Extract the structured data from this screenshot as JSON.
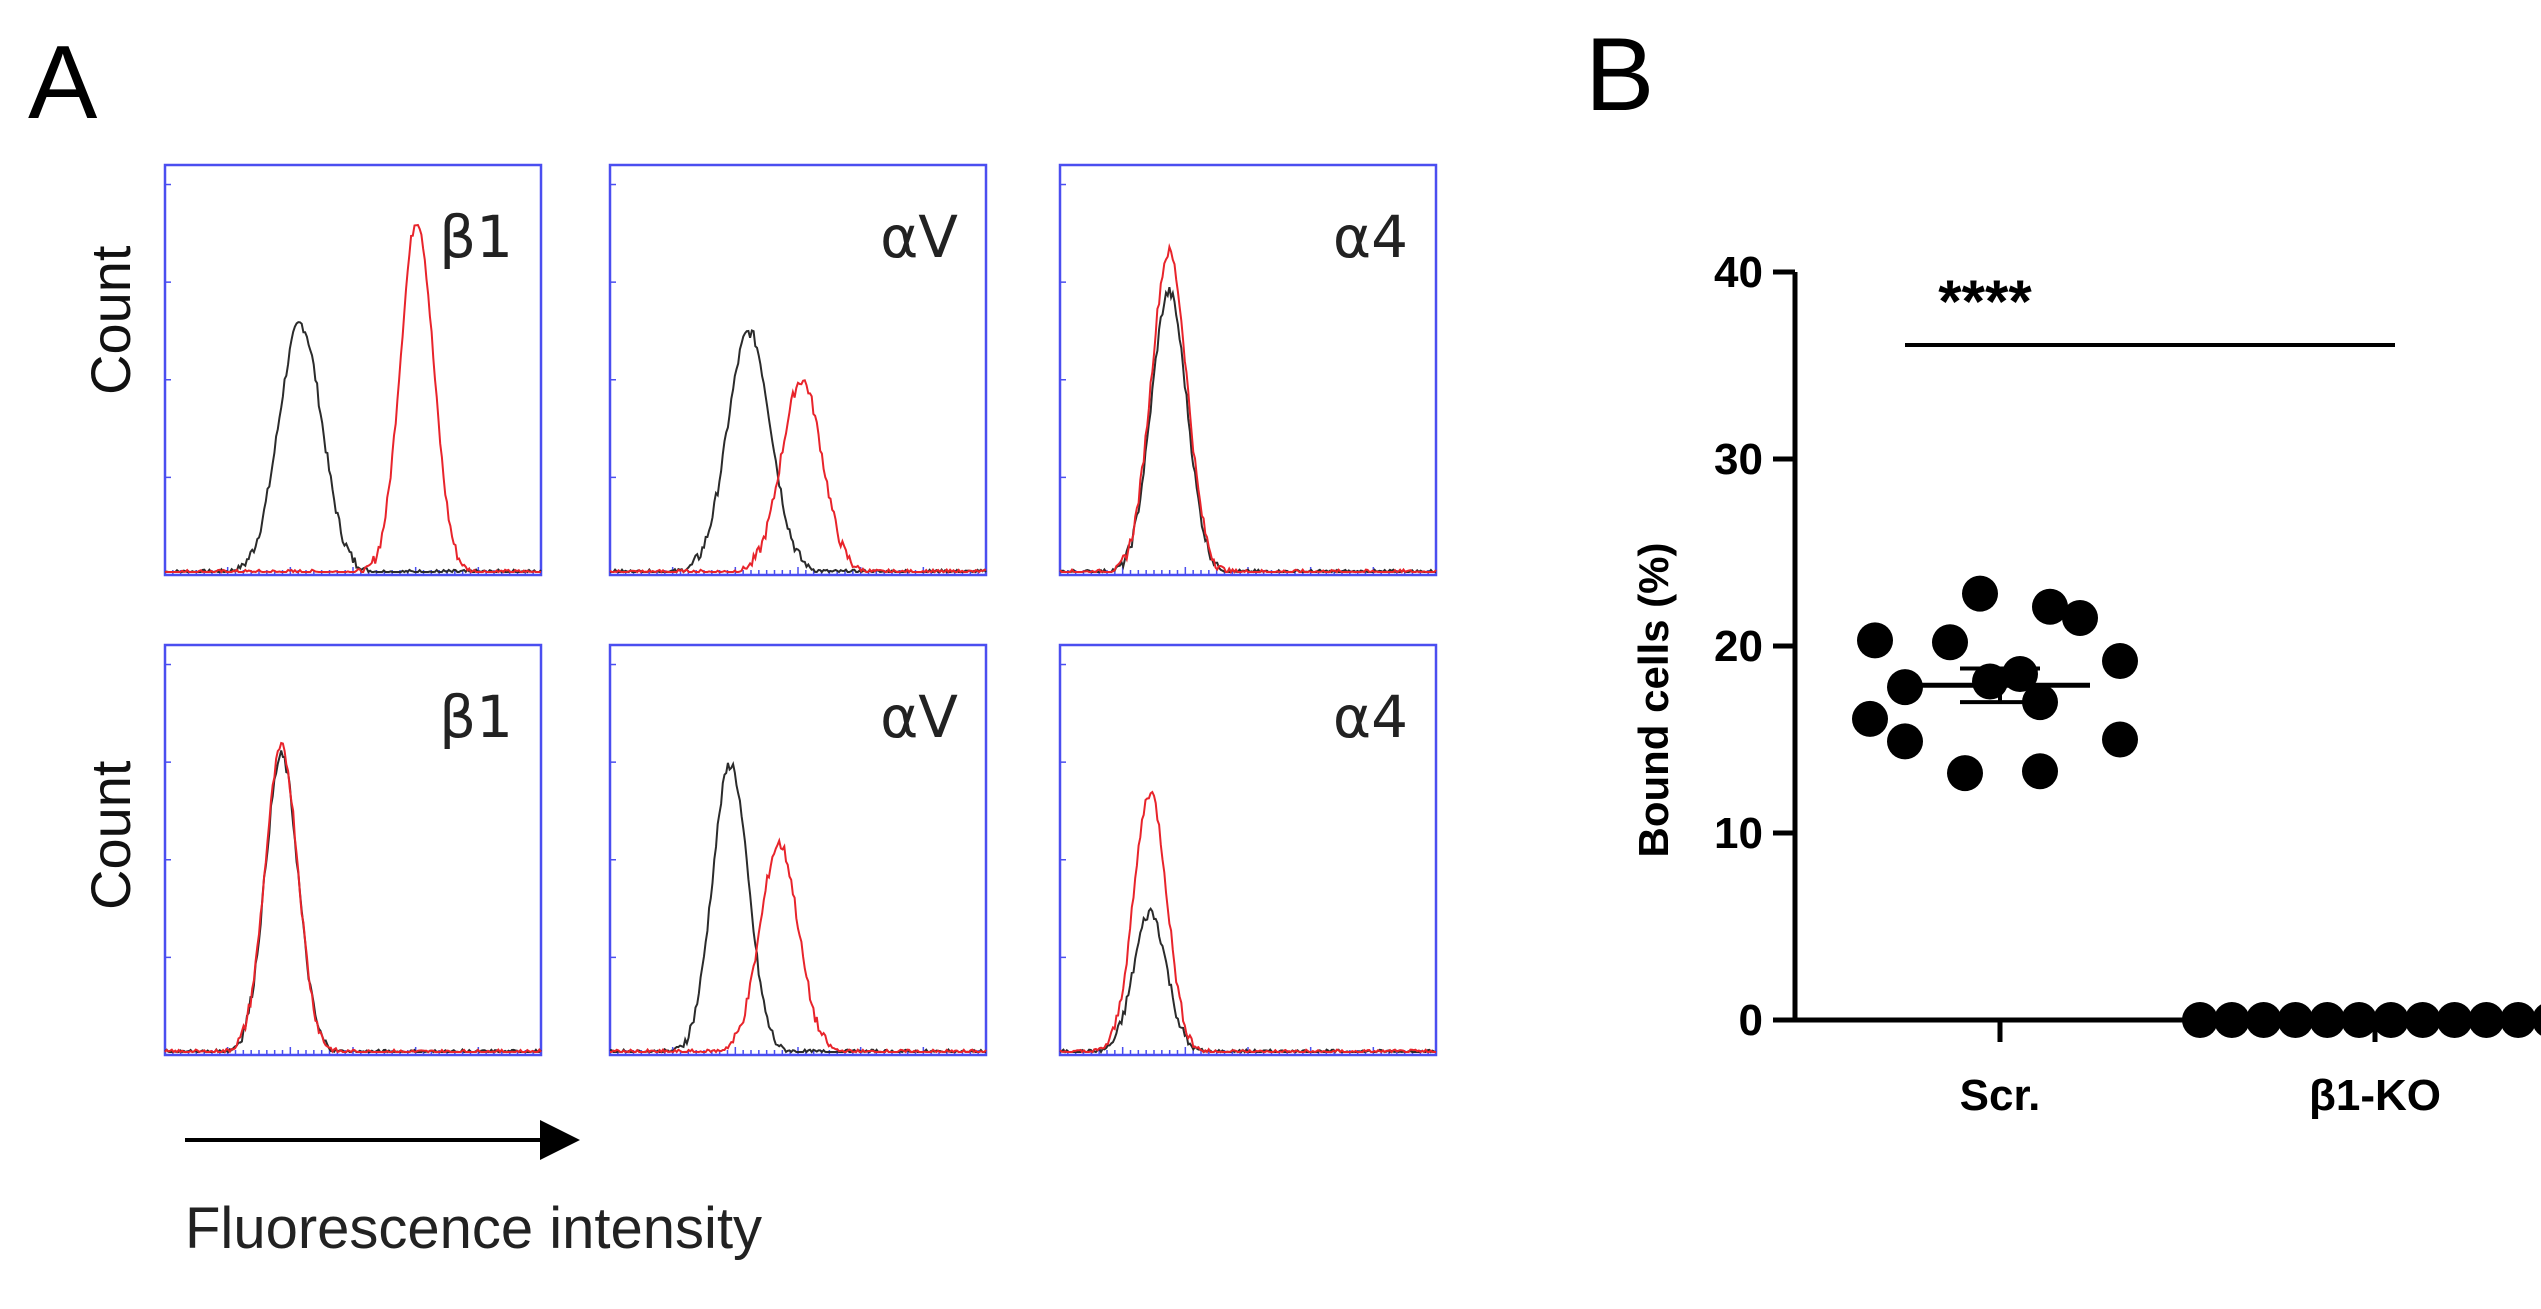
{
  "panel_a_letter": "A",
  "panel_b_letter": "B",
  "chart_data": [
    {
      "type": "histogram-grid",
      "panel": "A",
      "ylabel": "Count",
      "xlabel": "Fluorescence intensity",
      "x_range": [
        0,
        1
      ],
      "colors": {
        "control": "#2b2b2b",
        "stained": "#e8242b",
        "frame": "#4a4ef0"
      },
      "rows": [
        {
          "ylabel": "Count",
          "plots": [
            {
              "label": "β1",
              "control": {
                "center": 0.36,
                "width": 0.085,
                "height": 0.62
              },
              "stained": {
                "center": 0.67,
                "width": 0.065,
                "height": 0.88
              }
            },
            {
              "label": "αV",
              "control": {
                "center": 0.37,
                "width": 0.085,
                "height": 0.6
              },
              "stained": {
                "center": 0.51,
                "width": 0.08,
                "height": 0.48
              }
            },
            {
              "label": "α4",
              "control": {
                "center": 0.29,
                "width": 0.07,
                "height": 0.7
              },
              "stained": {
                "center": 0.29,
                "width": 0.07,
                "height": 0.8
              }
            }
          ]
        },
        {
          "ylabel": "Count",
          "plots": [
            {
              "label": "β1",
              "control": {
                "center": 0.31,
                "width": 0.065,
                "height": 0.74
              },
              "stained": {
                "center": 0.31,
                "width": 0.065,
                "height": 0.76
              }
            },
            {
              "label": "αV",
              "control": {
                "center": 0.32,
                "width": 0.07,
                "height": 0.72
              },
              "stained": {
                "center": 0.45,
                "width": 0.075,
                "height": 0.52
              }
            },
            {
              "label": "α4",
              "control": {
                "center": 0.24,
                "width": 0.065,
                "height": 0.35
              },
              "stained": {
                "center": 0.24,
                "width": 0.065,
                "height": 0.65
              }
            }
          ]
        }
      ]
    },
    {
      "type": "scatter",
      "panel": "B",
      "ylabel": "Bound cells (%)",
      "ylim": [
        0,
        40
      ],
      "yticks": [
        0,
        10,
        20,
        30,
        40
      ],
      "categories": [
        "Scr.",
        "β1-KO"
      ],
      "groups": [
        {
          "name": "Scr.",
          "values": [
            22.8,
            20.3,
            22.1,
            20.2,
            21.5,
            19.2,
            17.8,
            18.5,
            16.1,
            17.0,
            14.9,
            13.2,
            13.3,
            15.0,
            18.1
          ],
          "mean": 17.9,
          "sem": 0.9
        },
        {
          "name": "β1-KO",
          "values": [
            0,
            0,
            0,
            0,
            0,
            0,
            0,
            0,
            0,
            0,
            0,
            0
          ],
          "mean": 0,
          "sem": 0
        }
      ],
      "significance": "****"
    }
  ]
}
